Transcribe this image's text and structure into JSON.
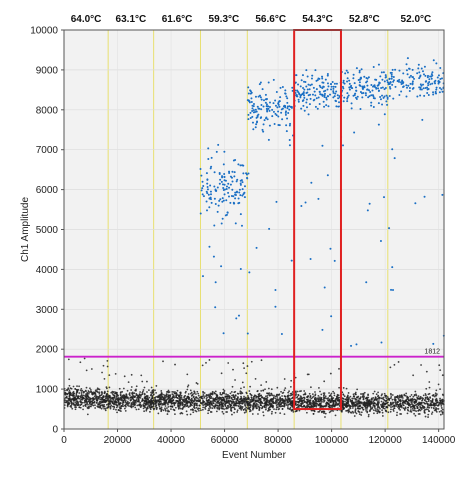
{
  "chart_data": {
    "type": "scatter",
    "title": "",
    "xlabel": "Event Number",
    "ylabel": "Ch1 Amplitude",
    "xlim": [
      0,
      142000
    ],
    "ylim": [
      0,
      10000
    ],
    "x_ticks": [
      0,
      20000,
      40000,
      60000,
      80000,
      100000,
      120000,
      140000
    ],
    "x_tick_labels": [
      "0",
      "20000",
      "40000",
      "60000",
      "80000",
      "100000",
      "120000",
      "140000"
    ],
    "y_ticks": [
      0,
      1000,
      2000,
      3000,
      4000,
      5000,
      6000,
      7000,
      8000,
      9000,
      10000
    ],
    "y_tick_labels": [
      "0",
      "1000",
      "2000",
      "3000",
      "4000",
      "5000",
      "6000",
      "7000",
      "8000",
      "9000",
      "10000"
    ],
    "grid": true,
    "temperature_columns": [
      {
        "label": "64.0°C",
        "x_start": 0,
        "x_end": 16500
      },
      {
        "label": "63.1°C",
        "x_start": 16500,
        "x_end": 33500
      },
      {
        "label": "61.6°C",
        "x_start": 33500,
        "x_end": 51000
      },
      {
        "label": "59.3°C",
        "x_start": 51000,
        "x_end": 68500
      },
      {
        "label": "56.6°C",
        "x_start": 68500,
        "x_end": 86000
      },
      {
        "label": "54.3°C",
        "x_start": 86000,
        "x_end": 103500
      },
      {
        "label": "52.8°C",
        "x_start": 103500,
        "x_end": 121000
      },
      {
        "label": "52.0°C",
        "x_start": 121000,
        "x_end": 142000
      }
    ],
    "threshold": {
      "value": 1812,
      "label": "1812",
      "color": "#cc22cc"
    },
    "highlight_box": {
      "x_start": 86000,
      "x_end": 103500,
      "y_start": 500,
      "y_end": 10000,
      "color": "#e02020"
    },
    "series": [
      {
        "role": "negative droplets",
        "color": "#222222",
        "segments": [
          {
            "x_start": 0,
            "x_end": 16500,
            "y_center": 750,
            "y_spread": 130
          },
          {
            "x_start": 16500,
            "x_end": 33500,
            "y_center": 720,
            "y_spread": 130
          },
          {
            "x_start": 33500,
            "x_end": 51000,
            "y_center": 700,
            "y_spread": 130
          },
          {
            "x_start": 51000,
            "x_end": 68500,
            "y_center": 690,
            "y_spread": 130
          },
          {
            "x_start": 68500,
            "x_end": 86000,
            "y_center": 680,
            "y_spread": 130
          },
          {
            "x_start": 86000,
            "x_end": 103500,
            "y_center": 660,
            "y_spread": 130
          },
          {
            "x_start": 103500,
            "x_end": 121000,
            "y_center": 650,
            "y_spread": 130
          },
          {
            "x_start": 121000,
            "x_end": 142000,
            "y_center": 640,
            "y_spread": 130
          }
        ]
      },
      {
        "role": "positive droplets",
        "color": "#1a6fc4",
        "segments": [
          {
            "x_start": 51000,
            "x_end": 68500,
            "y_center": 6100,
            "y_spread": 420
          },
          {
            "x_start": 68500,
            "x_end": 86000,
            "y_center": 8050,
            "y_spread": 300
          },
          {
            "x_start": 86000,
            "x_end": 103500,
            "y_center": 8450,
            "y_spread": 230
          },
          {
            "x_start": 103500,
            "x_end": 121000,
            "y_center": 8550,
            "y_spread": 220
          },
          {
            "x_start": 121000,
            "x_end": 142000,
            "y_center": 8700,
            "y_spread": 200
          }
        ]
      }
    ]
  }
}
